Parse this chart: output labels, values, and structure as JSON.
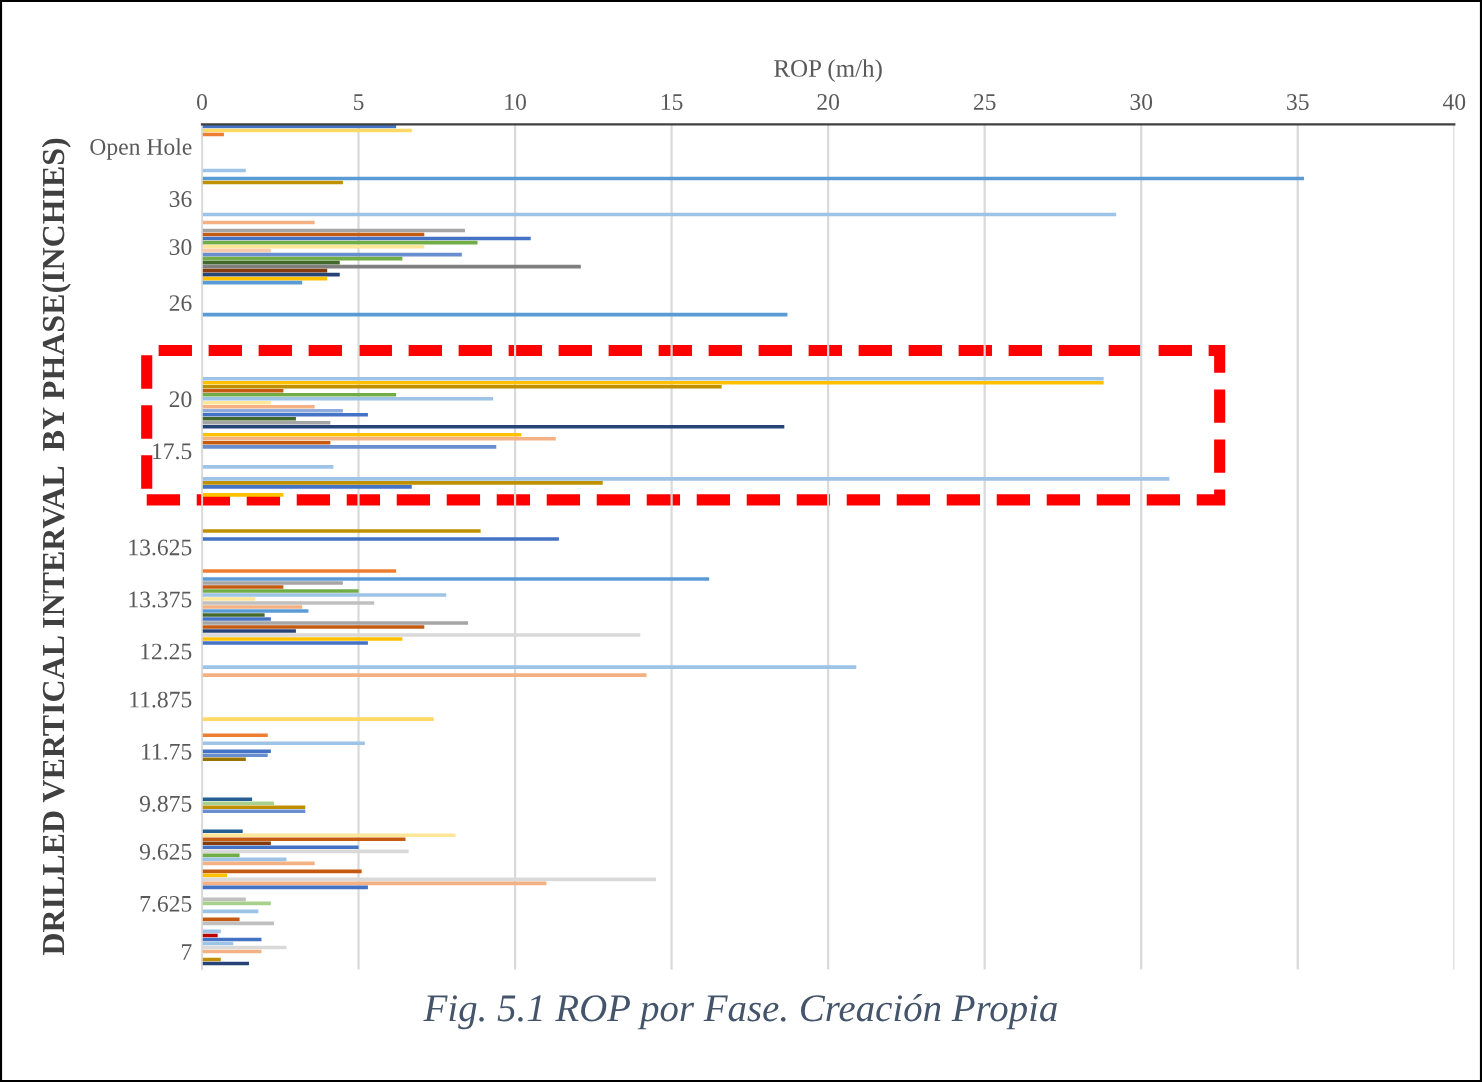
{
  "chart_data": {
    "type": "bar",
    "orientation": "horizontal",
    "xlabel": "ROP (m/h)",
    "ylabel": "DRILLED VERTICAL INTERVAL  BY PHASE(INCHIES)",
    "categories": [
      null,
      null,
      null,
      null,
      null,
      "Open Hole",
      null,
      null,
      null,
      null,
      null,
      null,
      null,
      null,
      null,
      null,
      null,
      null,
      "36",
      null,
      null,
      null,
      null,
      null,
      null,
      null,
      null,
      null,
      null,
      null,
      "30",
      null,
      null,
      null,
      null,
      null,
      null,
      null,
      null,
      null,
      null,
      null,
      null,
      null,
      "26",
      null,
      null,
      null,
      null,
      null,
      null,
      null,
      null,
      null,
      null,
      null,
      null,
      null,
      null,
      null,
      null,
      null,
      null,
      null,
      null,
      null,
      null,
      null,
      "20",
      null,
      null,
      null,
      null,
      null,
      null,
      null,
      null,
      null,
      null,
      null,
      null,
      "17.5",
      null,
      null,
      null,
      null,
      null,
      null,
      null,
      null,
      null,
      null,
      null,
      null,
      null,
      null,
      null,
      null,
      null,
      null,
      null,
      null,
      null,
      null,
      null,
      "13.625",
      null,
      null,
      null,
      null,
      null,
      null,
      null,
      null,
      null,
      null,
      null,
      null,
      "13.375",
      null,
      null,
      null,
      null,
      null,
      null,
      null,
      null,
      null,
      null,
      null,
      null,
      "12.25",
      null,
      null,
      null,
      null,
      null,
      null,
      null,
      null,
      null,
      null,
      null,
      "11.875",
      null,
      null,
      null,
      null,
      null,
      null,
      null,
      null,
      null,
      null,
      null,
      null,
      "11.75",
      null,
      null,
      null,
      null,
      null,
      null,
      null,
      null,
      null,
      null,
      null,
      null,
      "9.875",
      null,
      null,
      null,
      null,
      null,
      null,
      null,
      null,
      null,
      null,
      null,
      "9.625",
      null,
      null,
      null,
      null,
      null,
      null,
      null,
      null,
      null,
      null,
      null,
      null,
      "7.625",
      null,
      null,
      null,
      null,
      null,
      null,
      null,
      null,
      null,
      null,
      null,
      "7",
      null,
      null,
      null,
      null
    ],
    "values": [
      6.2,
      6.7,
      0.7,
      null,
      null,
      null,
      null,
      null,
      null,
      null,
      null,
      1.4,
      null,
      35.2,
      4.5,
      null,
      null,
      null,
      null,
      null,
      null,
      null,
      29.2,
      null,
      3.6,
      null,
      8.4,
      7.1,
      10.5,
      8.8,
      7.1,
      2.2,
      8.3,
      6.4,
      4.4,
      12.1,
      4.0,
      4.4,
      4.0,
      3.2,
      null,
      null,
      null,
      null,
      null,
      null,
      null,
      18.7,
      null,
      null,
      null,
      null,
      null,
      null,
      null,
      null,
      null,
      null,
      null,
      null,
      null,
      null,
      null,
      28.8,
      28.8,
      16.6,
      2.6,
      6.2,
      9.3,
      2.2,
      3.6,
      4.5,
      5.3,
      3.0,
      4.1,
      18.6,
      null,
      10.2,
      11.3,
      4.1,
      9.4,
      null,
      null,
      null,
      null,
      4.2,
      null,
      null,
      30.9,
      12.8,
      6.7,
      null,
      2.6,
      null,
      null,
      null,
      null,
      null,
      null,
      null,
      null,
      8.9,
      null,
      11.4,
      null,
      null,
      null,
      null,
      null,
      null,
      null,
      6.2,
      null,
      16.2,
      4.5,
      2.6,
      5.0,
      7.8,
      1.7,
      5.5,
      3.2,
      3.4,
      2.0,
      2.2,
      8.5,
      7.1,
      3.0,
      14.0,
      6.4,
      5.3,
      null,
      null,
      null,
      null,
      null,
      20.9,
      null,
      14.2,
      null,
      null,
      null,
      null,
      null,
      null,
      null,
      null,
      null,
      null,
      7.4,
      null,
      null,
      null,
      2.1,
      null,
      5.2,
      null,
      2.2,
      2.1,
      1.4,
      null,
      null,
      null,
      null,
      null,
      null,
      null,
      null,
      null,
      1.6,
      2.3,
      3.3,
      3.3,
      null,
      null,
      null,
      null,
      1.3,
      8.1,
      6.5,
      2.2,
      5.0,
      6.6,
      1.2,
      2.7,
      3.6,
      null,
      5.1,
      0.8,
      14.5,
      11.0,
      5.3,
      null,
      null,
      1.4,
      2.2,
      null,
      1.8,
      null,
      1.2,
      2.3,
      null,
      0.6,
      0.5,
      1.9,
      1.0,
      2.7,
      1.9,
      null,
      0.6,
      1.5,
      null
    ],
    "colors": [
      "#4472c4",
      "#ffd966",
      "#ed7d31",
      null,
      null,
      null,
      null,
      null,
      null,
      null,
      null,
      "#9dc3e6",
      null,
      "#5b9bd5",
      "#bf9000",
      null,
      null,
      null,
      null,
      null,
      null,
      null,
      "#9dc3e6",
      null,
      "#f4b183",
      null,
      "#a5a5a5",
      "#c55a11",
      "#4472c4",
      "#70ad47",
      "#ffe699",
      "#f8cbad",
      "#698ed0",
      "#70ad47",
      "#43682b",
      "#7f7f7f",
      "#843c0c",
      "#264478",
      "#ffc000",
      "#5b9bd5",
      null,
      null,
      null,
      null,
      null,
      null,
      null,
      "#5b9bd5",
      null,
      null,
      null,
      null,
      null,
      null,
      null,
      null,
      null,
      null,
      null,
      null,
      null,
      null,
      null,
      "#9dc3e6",
      "#ffc000",
      "#bf9000",
      "#c55a11",
      "#70ad47",
      "#9dc3e6",
      "#ffe699",
      "#f4b183",
      "#8faadc",
      "#4472c4",
      "#43682b",
      "#a5a5a5",
      "#264478",
      null,
      "#ffc000",
      "#f4b183",
      "#c55a11",
      "#698ed0",
      null,
      null,
      null,
      null,
      "#9dc3e6",
      null,
      null,
      "#9dc3e6",
      "#bf9000",
      "#4472c4",
      null,
      "#ffc000",
      null,
      null,
      null,
      null,
      null,
      null,
      null,
      null,
      "#bf9000",
      null,
      "#4472c4",
      null,
      null,
      null,
      null,
      null,
      null,
      null,
      "#ed7d31",
      null,
      "#5b9bd5",
      "#a5a5a5",
      "#c55a11",
      "#70ad47",
      "#9dc3e6",
      "#ffe699",
      "#bfbfbf",
      "#f4b183",
      "#5b9bd5",
      "#43682b",
      "#4472c4",
      "#a5a5a5",
      "#c55a11",
      "#264478",
      "#d9d9d9",
      "#ffc000",
      "#4472c4",
      null,
      null,
      null,
      null,
      null,
      "#9dc3e6",
      null,
      "#f4b183",
      null,
      null,
      null,
      null,
      null,
      null,
      null,
      null,
      null,
      null,
      "#ffd966",
      null,
      null,
      null,
      "#ed7d31",
      null,
      "#9dc3e6",
      null,
      "#4472c4",
      "#698ed0",
      "#997300",
      null,
      null,
      null,
      null,
      null,
      null,
      null,
      null,
      null,
      "#255e91",
      "#a9d18e",
      "#bf9000",
      "#698ed0",
      null,
      null,
      null,
      null,
      "#255e91",
      "#ffe699",
      "#c55a11",
      "#843c0c",
      "#4472c4",
      "#d9d9d9",
      "#70ad47",
      "#9dc3e6",
      "#f4b183",
      null,
      "#c55a11",
      "#ffc000",
      "#d9d9d9",
      "#f4b183",
      "#4472c4",
      null,
      null,
      "#bfbfbf",
      "#a9d18e",
      null,
      "#9dc3e6",
      null,
      "#c55a11",
      "#bfbfbf",
      null,
      "#9dc3e6",
      "#c00000",
      "#4472c4",
      "#9dc3e6",
      "#d9d9d9",
      "#f4b183",
      null,
      "#bf9000",
      "#264478",
      null
    ],
    "xlim": [
      0,
      40
    ],
    "xticks": [
      0,
      5,
      10,
      15,
      20,
      25,
      30,
      35,
      40
    ],
    "grid": "x",
    "annotations": [
      "Fig. 5.1 ROP por Fase. Creación Propia"
    ]
  }
}
